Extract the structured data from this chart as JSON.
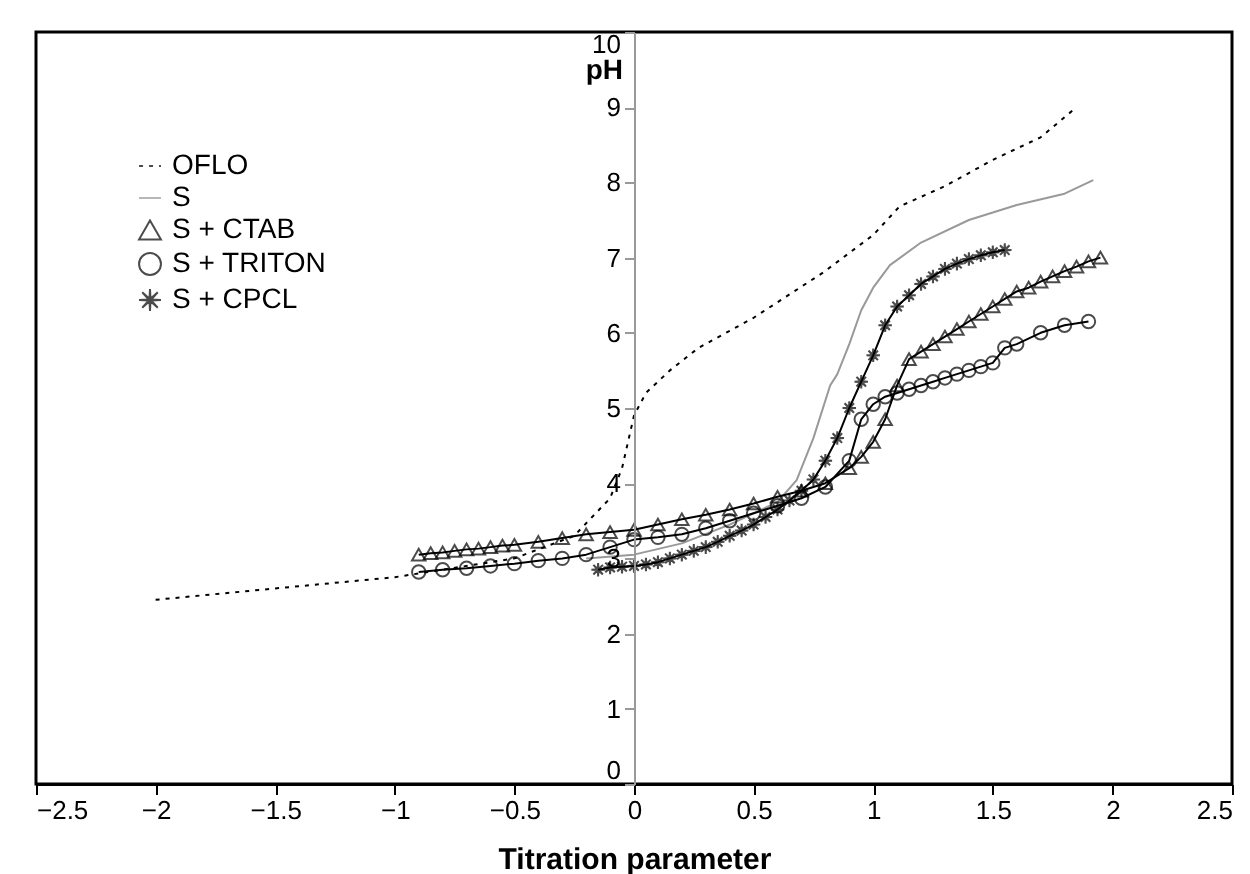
{
  "chart_data": {
    "type": "line",
    "xlabel": "Titration parameter",
    "ylabel": "pH",
    "xlim": [
      -2.5,
      2.5
    ],
    "xticks": [
      -2.5,
      -2,
      -1.5,
      -1,
      -0.5,
      0,
      0.5,
      1,
      1.5,
      2,
      2.5
    ],
    "ylim": [
      0,
      10
    ],
    "yticks": [
      0,
      1,
      2,
      3,
      4,
      5,
      6,
      7,
      8,
      9,
      10
    ],
    "grid": false,
    "legend": "top left",
    "series": [
      {
        "name": "OFLO",
        "color": "#000000",
        "line_style": "dotted",
        "marker": "none",
        "x": [
          -2,
          -1.5,
          -1,
          -0.5,
          -0.25,
          -0.1,
          -0.05,
          0,
          0.05,
          0.15,
          0.27,
          0.5,
          0.79,
          1.0,
          1.11,
          1.3,
          1.5,
          1.7,
          1.85
        ],
        "values": [
          2.45,
          2.6,
          2.75,
          3.0,
          3.3,
          3.8,
          4.2,
          4.9,
          5.2,
          5.5,
          5.8,
          6.2,
          6.8,
          7.3,
          7.68,
          7.95,
          8.3,
          8.6,
          9.0
        ]
      },
      {
        "name": "S",
        "color": "#999999",
        "line_style": "solid",
        "marker": "none",
        "x": [
          -0.2,
          0,
          0.2,
          0.4,
          0.6,
          0.68,
          0.75,
          0.82,
          0.85,
          0.9,
          0.95,
          1.0,
          1.07,
          1.2,
          1.4,
          1.6,
          1.8,
          1.92
        ],
        "values": [
          3.0,
          3.05,
          3.2,
          3.45,
          3.75,
          4.04,
          4.6,
          5.3,
          5.45,
          5.85,
          6.3,
          6.6,
          6.9,
          7.2,
          7.5,
          7.7,
          7.85,
          8.03
        ]
      },
      {
        "name": "S + CTAB",
        "color": "#000000",
        "line_style": "solid",
        "marker": "triangle",
        "x": [
          -0.9,
          -0.85,
          -0.8,
          -0.75,
          -0.7,
          -0.65,
          -0.6,
          -0.55,
          -0.5,
          -0.4,
          -0.3,
          -0.2,
          -0.1,
          0,
          0.1,
          0.2,
          0.3,
          0.4,
          0.5,
          0.6,
          0.7,
          0.8,
          0.9,
          0.95,
          1.0,
          1.05,
          1.1,
          1.15,
          1.2,
          1.25,
          1.3,
          1.35,
          1.4,
          1.45,
          1.5,
          1.55,
          1.6,
          1.65,
          1.7,
          1.75,
          1.8,
          1.85,
          1.9,
          1.95
        ],
        "values": [
          3.05,
          3.07,
          3.08,
          3.1,
          3.12,
          3.13,
          3.15,
          3.17,
          3.18,
          3.22,
          3.27,
          3.32,
          3.35,
          3.38,
          3.45,
          3.52,
          3.58,
          3.65,
          3.73,
          3.82,
          3.9,
          4.0,
          4.2,
          4.35,
          4.55,
          4.85,
          5.3,
          5.65,
          5.75,
          5.85,
          5.95,
          6.05,
          6.15,
          6.25,
          6.35,
          6.45,
          6.55,
          6.6,
          6.68,
          6.75,
          6.82,
          6.88,
          6.95,
          7.0
        ]
      },
      {
        "name": "S + TRITON",
        "color": "#000000",
        "line_style": "solid",
        "marker": "circle",
        "x": [
          -0.9,
          -0.8,
          -0.7,
          -0.6,
          -0.5,
          -0.4,
          -0.3,
          -0.2,
          -0.1,
          0,
          0.1,
          0.2,
          0.3,
          0.4,
          0.5,
          0.6,
          0.7,
          0.8,
          0.9,
          0.95,
          1.0,
          1.05,
          1.1,
          1.15,
          1.2,
          1.25,
          1.3,
          1.35,
          1.4,
          1.45,
          1.5,
          1.55,
          1.6,
          1.7,
          1.8,
          1.9
        ],
        "values": [
          2.82,
          2.85,
          2.87,
          2.9,
          2.93,
          2.97,
          3.0,
          3.05,
          3.15,
          3.25,
          3.28,
          3.32,
          3.4,
          3.5,
          3.6,
          3.7,
          3.8,
          3.95,
          4.3,
          4.85,
          5.05,
          5.15,
          5.2,
          5.25,
          5.3,
          5.35,
          5.4,
          5.45,
          5.5,
          5.55,
          5.6,
          5.8,
          5.85,
          6.0,
          6.1,
          6.15
        ]
      },
      {
        "name": "S + CPCL",
        "color": "#000000",
        "line_style": "solid",
        "marker": "cross",
        "x": [
          -0.15,
          -0.1,
          -0.05,
          0,
          0.05,
          0.1,
          0.15,
          0.2,
          0.25,
          0.3,
          0.35,
          0.4,
          0.45,
          0.5,
          0.55,
          0.6,
          0.65,
          0.7,
          0.75,
          0.8,
          0.85,
          0.9,
          0.95,
          1.0,
          1.05,
          1.1,
          1.15,
          1.2,
          1.25,
          1.3,
          1.35,
          1.4,
          1.45,
          1.5,
          1.55
        ],
        "values": [
          2.85,
          2.88,
          2.89,
          2.9,
          2.92,
          2.95,
          3.0,
          3.05,
          3.1,
          3.15,
          3.22,
          3.3,
          3.37,
          3.45,
          3.55,
          3.65,
          3.77,
          3.9,
          4.05,
          4.3,
          4.6,
          5.0,
          5.35,
          5.7,
          6.1,
          6.35,
          6.5,
          6.65,
          6.75,
          6.85,
          6.92,
          6.98,
          7.03,
          7.07,
          7.1
        ]
      }
    ]
  }
}
